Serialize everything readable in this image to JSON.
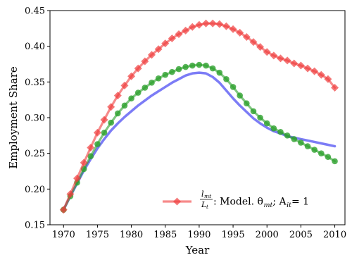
{
  "chart_data": {
    "type": "line",
    "title": "",
    "xlabel": "Year",
    "ylabel": "Employment Share",
    "xlim": [
      1968,
      2011.5
    ],
    "ylim": [
      0.15,
      0.45
    ],
    "xticks": [
      1970,
      1975,
      1980,
      1985,
      1990,
      1995,
      2000,
      2005,
      2010
    ],
    "yticks": [
      0.15,
      0.2,
      0.25,
      0.3,
      0.35,
      0.4,
      0.45
    ],
    "ytick_labels": [
      "0.15",
      "0.20",
      "0.25",
      "0.30",
      "0.35",
      "0.40",
      "0.45"
    ],
    "grid": false,
    "legend": {
      "position": "lower-right",
      "entries": [
        {
          "series": "red",
          "frac_num": "l",
          "frac_num_sub": "mt",
          "frac_den": "L",
          "frac_den_sub": "t",
          "text": ": Model. θ",
          "theta_sub": "mt",
          "tail": "; A",
          "a_sub": "it",
          "tail2": " = 1"
        }
      ]
    },
    "x": [
      1970,
      1971,
      1972,
      1973,
      1974,
      1975,
      1976,
      1977,
      1978,
      1979,
      1980,
      1981,
      1982,
      1983,
      1984,
      1985,
      1986,
      1987,
      1988,
      1989,
      1990,
      1991,
      1992,
      1993,
      1994,
      1995,
      1996,
      1997,
      1998,
      1999,
      2000,
      2001,
      2002,
      2003,
      2004,
      2005,
      2006,
      2007,
      2008,
      2009,
      2010
    ],
    "series": [
      {
        "key": "red",
        "color": "#f03c3c",
        "marker": "diamond",
        "values": [
          0.171,
          0.193,
          0.215,
          0.237,
          0.258,
          0.279,
          0.297,
          0.315,
          0.331,
          0.345,
          0.358,
          0.369,
          0.379,
          0.388,
          0.396,
          0.404,
          0.411,
          0.417,
          0.422,
          0.427,
          0.43,
          0.432,
          0.432,
          0.431,
          0.428,
          0.424,
          0.419,
          0.413,
          0.406,
          0.399,
          0.392,
          0.387,
          0.383,
          0.38,
          0.376,
          0.373,
          0.369,
          0.365,
          0.36,
          0.354,
          0.342
        ]
      },
      {
        "key": "green",
        "color": "#2ca02c",
        "marker": "circle",
        "values": [
          0.171,
          0.19,
          0.209,
          0.228,
          0.246,
          0.263,
          0.279,
          0.293,
          0.306,
          0.317,
          0.327,
          0.335,
          0.342,
          0.349,
          0.355,
          0.36,
          0.364,
          0.368,
          0.371,
          0.373,
          0.374,
          0.373,
          0.369,
          0.363,
          0.354,
          0.343,
          0.331,
          0.32,
          0.309,
          0.3,
          0.292,
          0.285,
          0.28,
          0.275,
          0.27,
          0.265,
          0.26,
          0.255,
          0.25,
          0.245,
          0.239
        ]
      },
      {
        "key": "blue",
        "color": "#6e6ef5",
        "marker": "none",
        "values": [
          0.171,
          0.19,
          0.208,
          0.226,
          0.242,
          0.257,
          0.27,
          0.282,
          0.292,
          0.301,
          0.309,
          0.317,
          0.324,
          0.331,
          0.337,
          0.343,
          0.349,
          0.354,
          0.359,
          0.362,
          0.363,
          0.362,
          0.357,
          0.349,
          0.338,
          0.327,
          0.317,
          0.308,
          0.299,
          0.292,
          0.286,
          0.281,
          0.278,
          0.274,
          0.272,
          0.27,
          0.268,
          0.266,
          0.264,
          0.262,
          0.26
        ]
      }
    ]
  }
}
